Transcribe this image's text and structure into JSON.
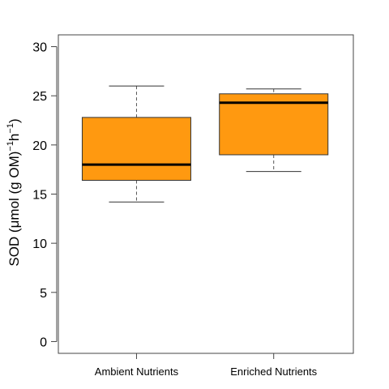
{
  "chart_data": {
    "type": "box",
    "title": "",
    "xlabel": "",
    "ylabel": {
      "prefix": "SOD (",
      "mu": "μ",
      "main": "mol (g OM)",
      "sup1": "−1",
      "mid": "h",
      "sup2": "−1",
      "suffix": ")"
    },
    "ylim": [
      -1.2,
      31.2
    ],
    "yticks": [
      "0",
      "5",
      "10",
      "15",
      "20",
      "25",
      "30"
    ],
    "categories": [
      "Ambient Nutrients",
      "Enriched Nutrients"
    ],
    "boxes": [
      {
        "category": "Ambient Nutrients",
        "min": 14.2,
        "q1": 16.4,
        "median": 18.0,
        "q3": 22.8,
        "max": 26.0
      },
      {
        "category": "Enriched Nutrients",
        "min": 17.3,
        "q1": 19.0,
        "median": 24.3,
        "q3": 25.2,
        "max": 25.7
      }
    ],
    "box_color": "#ff9910",
    "grid": false,
    "legend": "none"
  }
}
